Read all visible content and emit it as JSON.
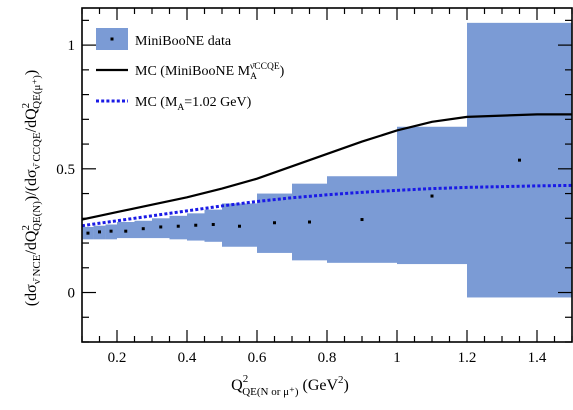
{
  "chart_data": {
    "type": "line",
    "title": "",
    "xlabel": {
      "main": "Q",
      "sup": "2",
      "sub": "QE(N or μ⁺)",
      "tail": " (GeV",
      "tail_sup": "2",
      "tail_end": ")"
    },
    "ylabel": {
      "p1": "(dσ",
      "s1": "ν̄ NCE",
      "p2": "/dQ",
      "sup2": "2",
      "s2": "QE(N)",
      "p3": ")/(dσ",
      "s3": "ν̄ CCQE",
      "p4": "/dQ",
      "sup4": "2",
      "s4": "QE(μ⁺)",
      "p5": ")"
    },
    "xlim": [
      0.1,
      1.5
    ],
    "ylim": [
      -0.2,
      1.15
    ],
    "xticks": [
      0.2,
      0.4,
      0.6,
      0.8,
      1.0,
      1.2,
      1.4
    ],
    "xtick_labels": [
      "0.2",
      "0.4",
      "0.6",
      "0.8",
      "1",
      "1.2",
      "1.4"
    ],
    "yticks": [
      0,
      0.5,
      1
    ],
    "ytick_labels": [
      "0",
      "0.5",
      "1"
    ],
    "grid": false,
    "legend_position": "top-left",
    "colors": {
      "band": "#7b9bd5",
      "data_marker": "#000000",
      "mc_miniboone": "#000000",
      "mc_ma": "#1a1ae6"
    },
    "legend": [
      {
        "key": "data",
        "label": "MiniBooNE data"
      },
      {
        "key": "mc1",
        "label": "MC (MiniBooNE M",
        "sub": "A",
        "sup": "ν̄CCQE",
        "end": ")"
      },
      {
        "key": "mc2",
        "label": "MC (M",
        "sub": "A",
        "end": "=1.02 GeV)"
      }
    ],
    "data_series": {
      "name": "MiniBooNE data",
      "bins": [
        {
          "x0": 0.1,
          "x1": 0.133,
          "x": 0.117,
          "y": 0.24,
          "lo": 0.215,
          "hi": 0.265
        },
        {
          "x0": 0.133,
          "x1": 0.167,
          "x": 0.15,
          "y": 0.245,
          "lo": 0.215,
          "hi": 0.27
        },
        {
          "x0": 0.167,
          "x1": 0.2,
          "x": 0.183,
          "y": 0.248,
          "lo": 0.215,
          "hi": 0.275
        },
        {
          "x0": 0.2,
          "x1": 0.25,
          "x": 0.225,
          "y": 0.248,
          "lo": 0.22,
          "hi": 0.285
        },
        {
          "x0": 0.25,
          "x1": 0.3,
          "x": 0.275,
          "y": 0.258,
          "lo": 0.22,
          "hi": 0.29
        },
        {
          "x0": 0.3,
          "x1": 0.35,
          "x": 0.325,
          "y": 0.265,
          "lo": 0.22,
          "hi": 0.3
        },
        {
          "x0": 0.35,
          "x1": 0.4,
          "x": 0.375,
          "y": 0.268,
          "lo": 0.215,
          "hi": 0.31
        },
        {
          "x0": 0.4,
          "x1": 0.45,
          "x": 0.425,
          "y": 0.272,
          "lo": 0.21,
          "hi": 0.32
        },
        {
          "x0": 0.45,
          "x1": 0.5,
          "x": 0.475,
          "y": 0.275,
          "lo": 0.205,
          "hi": 0.335
        },
        {
          "x0": 0.5,
          "x1": 0.6,
          "x": 0.55,
          "y": 0.268,
          "lo": 0.185,
          "hi": 0.36
        },
        {
          "x0": 0.6,
          "x1": 0.7,
          "x": 0.65,
          "y": 0.282,
          "lo": 0.16,
          "hi": 0.4
        },
        {
          "x0": 0.7,
          "x1": 0.8,
          "x": 0.75,
          "y": 0.285,
          "lo": 0.13,
          "hi": 0.44
        },
        {
          "x0": 0.8,
          "x1": 1.0,
          "x": 0.9,
          "y": 0.295,
          "lo": 0.12,
          "hi": 0.47
        },
        {
          "x0": 1.0,
          "x1": 1.2,
          "x": 1.1,
          "y": 0.39,
          "lo": 0.115,
          "hi": 0.67
        },
        {
          "x0": 1.2,
          "x1": 1.5,
          "x": 1.35,
          "y": 0.535,
          "lo": -0.02,
          "hi": 1.09
        }
      ]
    },
    "series": [
      {
        "key": "mc1",
        "style": "solid",
        "x": [
          0.1,
          0.15,
          0.2,
          0.3,
          0.4,
          0.5,
          0.6,
          0.7,
          0.8,
          0.9,
          1.0,
          1.1,
          1.2,
          1.3,
          1.4,
          1.5
        ],
        "values": [
          0.295,
          0.31,
          0.325,
          0.355,
          0.385,
          0.42,
          0.46,
          0.51,
          0.56,
          0.61,
          0.655,
          0.69,
          0.71,
          0.715,
          0.72,
          0.72
        ]
      },
      {
        "key": "mc2",
        "style": "dotted",
        "x": [
          0.1,
          0.2,
          0.3,
          0.4,
          0.5,
          0.6,
          0.7,
          0.8,
          0.9,
          1.0,
          1.1,
          1.2,
          1.3,
          1.4,
          1.5
        ],
        "values": [
          0.27,
          0.29,
          0.31,
          0.33,
          0.35,
          0.368,
          0.383,
          0.395,
          0.405,
          0.413,
          0.42,
          0.425,
          0.428,
          0.431,
          0.433
        ]
      }
    ]
  }
}
